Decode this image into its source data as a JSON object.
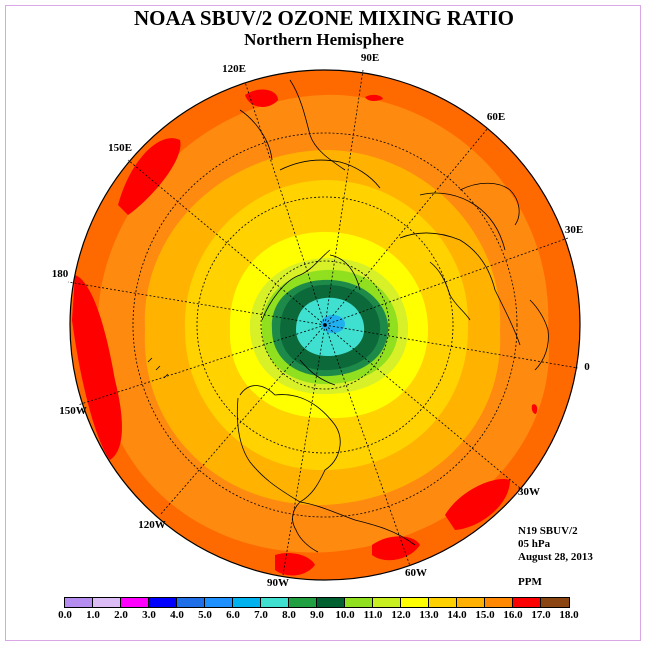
{
  "title": "NOAA SBUV/2 OZONE MIXING RATIO",
  "subtitle": "Northern Hemisphere",
  "longitude_labels": [
    "90E",
    "60E",
    "30E",
    "0",
    "30W",
    "60W",
    "90W",
    "120W",
    "150W",
    "180",
    "150E",
    "120E"
  ],
  "info_lines": [
    "N19 SBUV/2",
    "05 hPa",
    "August 28, 2013"
  ],
  "units": "PPM",
  "colorbar": {
    "ticks": [
      "0.0",
      "1.0",
      "2.0",
      "3.0",
      "4.0",
      "5.0",
      "6.0",
      "7.0",
      "8.0",
      "9.0",
      "10.0",
      "11.0",
      "12.0",
      "13.0",
      "14.0",
      "15.0",
      "16.0",
      "17.0",
      "18.0"
    ],
    "colors": [
      "#b58cf0",
      "#dcbcf5",
      "#ff00ff",
      "#0000ff",
      "#1f6fe8",
      "#1e90ff",
      "#00b2ee",
      "#40e0d0",
      "#20a040",
      "#006030",
      "#90e020",
      "#c8f020",
      "#ffff00",
      "#ffd000",
      "#ffb000",
      "#ff8800",
      "#ff0000",
      "#8b4513"
    ]
  },
  "contour_colors": {
    "outer": "#ff6a00",
    "orange": "#ff8a10",
    "light_orange": "#ffb300",
    "gold": "#ffd200",
    "yellow": "#ffff00",
    "yellow_green": "#d8f028",
    "green": "#90e020",
    "dark_green": "#0c6a3a",
    "mid_green": "#1e8a4a",
    "turquoise": "#40e0d0",
    "cyan": "#20b0f0",
    "red": "#ff0000"
  }
}
